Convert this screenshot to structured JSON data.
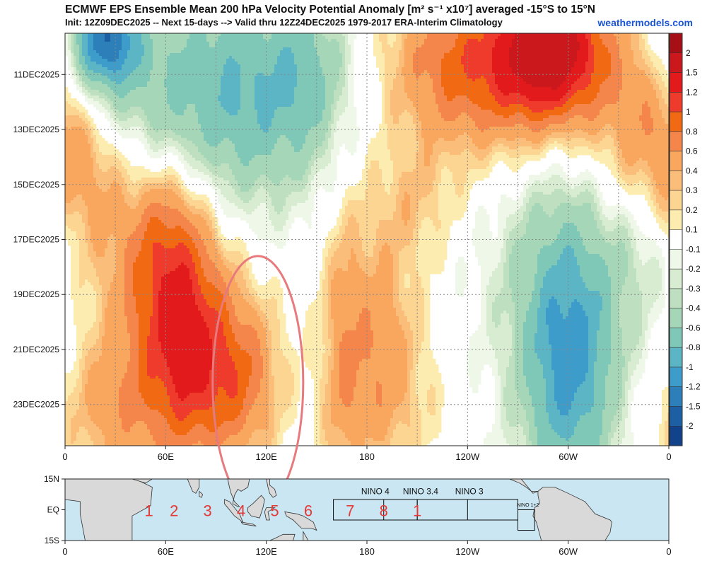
{
  "header": {
    "title": "ECMWF EPS Ensemble Mean 200 hPa Velocity Potential Anomaly [m² s⁻¹ x10⁷] averaged -15°S to 15°N",
    "subtitle": "Init: 12Z09DEC2025 -- Next 15-days --> Valid thru 12Z24DEC2025 1979-2017 ERA-Interim Climatology",
    "website": "weathermodels.com"
  },
  "chart_data": {
    "type": "heatmap",
    "description_axis_x": "Longitude (0 to 360, labels 0, 60E, 120E, 180, 120W, 60W, 0)",
    "x_ticks": [
      "0",
      "60E",
      "120E",
      "180",
      "120W",
      "60W",
      "0"
    ],
    "x_tick_values": [
      0,
      60,
      120,
      180,
      240,
      300,
      360
    ],
    "xlim": [
      0,
      360
    ],
    "y_ticks": [
      "11DEC2025",
      "13DEC2025",
      "15DEC2025",
      "17DEC2025",
      "19DEC2025",
      "21DEC2025",
      "23DEC2025"
    ],
    "y_tick_values": [
      2,
      4,
      6,
      8,
      10,
      12,
      14
    ],
    "ylim": [
      0.5,
      15.5
    ],
    "grid": true,
    "colorbar": {
      "labels": [
        "2",
        "1.5",
        "1.2",
        "1",
        "0.8",
        "0.6",
        "0.4",
        "0.3",
        "0.2",
        "0.1",
        "-0.1",
        "-0.2",
        "-0.3",
        "-0.4",
        "-0.6",
        "-0.8",
        "-1",
        "-1.2",
        "-1.5",
        "-2"
      ],
      "colors": [
        "#a50f15",
        "#cb181d",
        "#e31a1c",
        "#ef3b2c",
        "#f16913",
        "#f4854b",
        "#f9a75f",
        "#fbbe7a",
        "#fcd592",
        "#fdecb0",
        "#ffffff",
        "#eef7e8",
        "#d7ecd0",
        "#bfe0c0",
        "#a6d6b8",
        "#7fc8b8",
        "#5bb5c4",
        "#3e9ccb",
        "#2c7fb8",
        "#1d5fa3",
        "#12428a"
      ]
    },
    "anomaly_features": [
      {
        "lon": 15,
        "day": 1.5,
        "amp": -0.4,
        "wl": 18,
        "wd": 1.5
      },
      {
        "lon": 25,
        "day": 0.5,
        "amp": -1.0,
        "wl": 12,
        "wd": 1.2
      },
      {
        "lon": 65,
        "day": 2.5,
        "amp": -0.6,
        "wl": 45,
        "wd": 2.8
      },
      {
        "lon": 110,
        "day": 3.0,
        "amp": -0.4,
        "wl": 25,
        "wd": 3.0
      },
      {
        "lon": 145,
        "day": 2.0,
        "amp": -0.5,
        "wl": 18,
        "wd": 2.5
      },
      {
        "lon": 10,
        "day": 6.0,
        "amp": 0.5,
        "wl": 22,
        "wd": 2.5
      },
      {
        "lon": 60,
        "day": 8.0,
        "amp": 0.7,
        "wl": 18,
        "wd": 2.2
      },
      {
        "lon": 75,
        "day": 11.0,
        "amp": 0.7,
        "wl": 20,
        "wd": 2.5
      },
      {
        "lon": 80,
        "day": 13.5,
        "amp": 0.6,
        "wl": 22,
        "wd": 2.2
      },
      {
        "lon": 110,
        "day": 13.0,
        "amp": 0.45,
        "wl": 14,
        "wd": 2.0
      },
      {
        "lon": 45,
        "day": 12.5,
        "amp": 0.35,
        "wl": 25,
        "wd": 3.0
      },
      {
        "lon": 20,
        "day": 14.5,
        "amp": 0.25,
        "wl": 22,
        "wd": 2.0
      },
      {
        "lon": 185,
        "day": 11.0,
        "amp": 0.45,
        "wl": 18,
        "wd": 3.0
      },
      {
        "lon": 165,
        "day": 12.5,
        "amp": 0.3,
        "wl": 8,
        "wd": 4.0
      },
      {
        "lon": 190,
        "day": 14.0,
        "amp": 0.25,
        "wl": 22,
        "wd": 2.0
      },
      {
        "lon": 290,
        "day": 1.0,
        "amp": 1.6,
        "wl": 22,
        "wd": 1.8
      },
      {
        "lon": 260,
        "day": 2.0,
        "amp": 0.6,
        "wl": 30,
        "wd": 2.2
      },
      {
        "lon": 225,
        "day": 1.5,
        "amp": 0.5,
        "wl": 25,
        "wd": 2.0
      },
      {
        "lon": 345,
        "day": 3.5,
        "amp": 0.6,
        "wl": 25,
        "wd": 2.5
      },
      {
        "lon": 210,
        "day": 6.5,
        "amp": 0.25,
        "wl": 18,
        "wd": 1.5
      },
      {
        "lon": 300,
        "day": 13.0,
        "amp": -0.9,
        "wl": 20,
        "wd": 3.5
      },
      {
        "lon": 300,
        "day": 9.0,
        "amp": -0.4,
        "wl": 35,
        "wd": 3.5
      },
      {
        "lon": 350,
        "day": 8.0,
        "amp": -0.3,
        "wl": 15,
        "wd": 2.0
      }
    ],
    "highlight_ellipse": {
      "lon": 115,
      "day": 13.2,
      "lon_radius": 27,
      "day_radius": 4.6,
      "color": "#e8797c"
    }
  },
  "inset_map": {
    "y_ticks": [
      "15N",
      "EQ",
      "15S"
    ],
    "x_ticks": [
      "0",
      "60E",
      "120E",
      "180",
      "120W",
      "60W",
      "0"
    ],
    "mjo_phases": [
      {
        "label": "1",
        "lon": 50
      },
      {
        "label": "2",
        "lon": 65
      },
      {
        "label": "3",
        "lon": 85
      },
      {
        "label": "4",
        "lon": 105
      },
      {
        "label": "5",
        "lon": 125
      },
      {
        "label": "6",
        "lon": 145
      },
      {
        "label": "7",
        "lon": 170
      },
      {
        "label": "8",
        "lon": 190
      },
      {
        "label": "1",
        "lon": 210
      }
    ],
    "nino_boxes": [
      {
        "label": "NINO 4",
        "lon_from": 160,
        "lon_to": 210
      },
      {
        "label": "NINO 3.4",
        "lon_from": 190,
        "lon_to": 240
      },
      {
        "label": "NINO 3",
        "lon_from": 210,
        "lon_to": 270
      },
      {
        "label": "NINO 1+2",
        "lon_from": 270,
        "lon_to": 280
      }
    ],
    "phase_color": "#e53935",
    "ocean_color": "#c9e6f2",
    "land_color": "#d9d9d9"
  }
}
